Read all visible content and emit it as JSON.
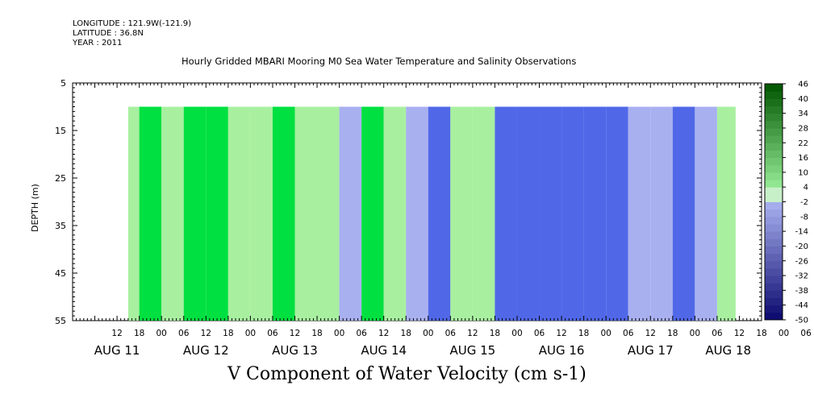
{
  "header": {
    "longitude": "LONGITUDE : 121.9W(-121.9)",
    "latitude": "LATITUDE : 36.8N",
    "year": "YEAR : 2011",
    "title": "Hourly Gridded MBARI Mooring M0 Sea Water Temperature and Salinity Observations"
  },
  "chart_data": {
    "type": "heatmap",
    "title": "Hourly Gridded MBARI Mooring M0 Sea Water Temperature and Salinity Observations",
    "xlabel": "V Component of Water Velocity (cm s-1)",
    "ylabel": "DEPTH (m)",
    "y_ticks": [
      "5",
      "15",
      "25",
      "35",
      "45",
      "55"
    ],
    "ylim": [
      55,
      5
    ],
    "x_hour_ticks": [
      "12",
      "18",
      "00",
      "06",
      "12",
      "18",
      "00",
      "06",
      "12",
      "18",
      "00",
      "06",
      "12",
      "18",
      "00",
      "06",
      "12",
      "18",
      "00",
      "06",
      "12",
      "18",
      "00",
      "06",
      "12",
      "18",
      "00",
      "06",
      "12",
      "18",
      "00",
      "06"
    ],
    "x_day_labels": [
      "AUG 11",
      "AUG 12",
      "AUG 13",
      "AUG 14",
      "AUG 15",
      "AUG 16",
      "AUG 17",
      "AUG 18"
    ],
    "data_start": "AUG 11 15:00",
    "data_end": "AUG 18 11:00",
    "depth_range": [
      10,
      55
    ],
    "colorbar_labels": [
      "46",
      "40",
      "34",
      "28",
      "22",
      "16",
      "10",
      "4",
      "-2",
      "-8",
      "-14",
      "-20",
      "-26",
      "-32",
      "-38",
      "-44",
      "-50"
    ],
    "colorbar_range": [
      -50,
      46
    ],
    "colors": {
      "strong_positive": "#00e040",
      "weak_positive": "#a8f0a0",
      "weak_negative": "#a8b0f0",
      "strong_negative": "#5068e8"
    },
    "velocity_profile": [
      {
        "time": "AUG 11 15:00",
        "v": 8
      },
      {
        "time": "AUG 11 21:00",
        "v": 10
      },
      {
        "time": "AUG 12 03:00",
        "v": 4
      },
      {
        "time": "AUG 12 09:00",
        "v": 14
      },
      {
        "time": "AUG 12 15:00",
        "v": 12
      },
      {
        "time": "AUG 12 21:00",
        "v": 6
      },
      {
        "time": "AUG 13 03:00",
        "v": 2
      },
      {
        "time": "AUG 13 09:00",
        "v": 12
      },
      {
        "time": "AUG 13 15:00",
        "v": 8
      },
      {
        "time": "AUG 13 21:00",
        "v": 2
      },
      {
        "time": "AUG 14 03:00",
        "v": -2
      },
      {
        "time": "AUG 14 09:00",
        "v": 10
      },
      {
        "time": "AUG 14 15:00",
        "v": 4
      },
      {
        "time": "AUG 14 21:00",
        "v": -4
      },
      {
        "time": "AUG 15 03:00",
        "v": -6
      },
      {
        "time": "AUG 15 09:00",
        "v": 2
      },
      {
        "time": "AUG 15 15:00",
        "v": 0
      },
      {
        "time": "AUG 15 21:00",
        "v": -8
      },
      {
        "time": "AUG 16 03:00",
        "v": -10
      },
      {
        "time": "AUG 16 09:00",
        "v": -6
      },
      {
        "time": "AUG 16 15:00",
        "v": -8
      },
      {
        "time": "AUG 16 21:00",
        "v": -10
      },
      {
        "time": "AUG 17 03:00",
        "v": -6
      },
      {
        "time": "AUG 17 09:00",
        "v": -2
      },
      {
        "time": "AUG 17 15:00",
        "v": -4
      },
      {
        "time": "AUG 17 21:00",
        "v": -6
      },
      {
        "time": "AUG 18 03:00",
        "v": -2
      },
      {
        "time": "AUG 18 09:00",
        "v": 4
      }
    ]
  }
}
